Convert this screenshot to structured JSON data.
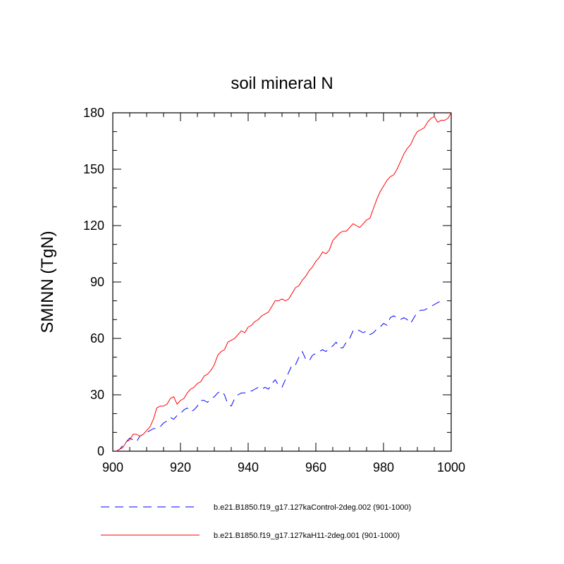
{
  "chart_data": {
    "type": "line",
    "title": "soil mineral N",
    "xlabel": "",
    "ylabel": "SMINN  (TgN)",
    "xlim": [
      900,
      1000
    ],
    "ylim": [
      0,
      180
    ],
    "xticks": [
      900,
      920,
      940,
      960,
      980,
      1000
    ],
    "yticks": [
      0,
      30,
      60,
      90,
      120,
      150,
      180
    ],
    "legend_position": "bottom",
    "series": [
      {
        "name": "b.e21.B1850.f19_g17.127kaControl-2deg.002 (901-1000)",
        "color": "#0000ff",
        "style": "dashed",
        "x": [
          901,
          902,
          903,
          904,
          905,
          906,
          907,
          908,
          909,
          910,
          911,
          912,
          913,
          914,
          915,
          916,
          917,
          918,
          919,
          920,
          921,
          922,
          923,
          924,
          925,
          926,
          927,
          928,
          929,
          930,
          931,
          932,
          933,
          934,
          935,
          936,
          937,
          938,
          939,
          940,
          941,
          942,
          943,
          944,
          945,
          946,
          947,
          948,
          949,
          950,
          951,
          952,
          953,
          954,
          955,
          956,
          957,
          958,
          959,
          960,
          961,
          962,
          963,
          964,
          965,
          966,
          967,
          968,
          969,
          970,
          971,
          972,
          973,
          974,
          975,
          976,
          977,
          978,
          979,
          980,
          981,
          982,
          983,
          984,
          985,
          986,
          987,
          988,
          989,
          990,
          991,
          992,
          993,
          994,
          995,
          996,
          997,
          998
        ],
        "values": [
          0,
          1,
          3,
          5,
          7,
          6,
          5,
          8,
          9,
          10,
          11,
          12,
          12,
          13,
          15,
          16,
          18,
          17,
          19,
          20,
          22,
          23,
          21,
          22,
          24,
          27,
          27,
          26,
          28,
          29,
          31,
          32,
          30,
          25,
          24,
          28,
          30,
          31,
          31,
          32,
          32,
          33,
          34,
          33,
          34,
          33,
          36,
          38,
          35,
          34,
          38,
          42,
          46,
          46,
          50,
          53,
          49,
          48,
          51,
          52,
          53,
          54,
          53,
          55,
          56,
          58,
          55,
          55,
          58,
          60,
          64,
          65,
          64,
          63,
          64,
          62,
          63,
          65,
          66,
          68,
          67,
          71,
          72,
          71,
          70,
          71,
          70,
          68,
          71,
          74,
          75,
          75,
          76,
          77,
          78,
          79,
          80,
          81
        ]
      },
      {
        "name": "b.e21.B1850.f19_g17.127kaH11-2deg.001 (901-1000)",
        "color": "#ff0000",
        "style": "solid",
        "x": [
          901,
          902,
          903,
          904,
          905,
          906,
          907,
          908,
          909,
          910,
          911,
          912,
          913,
          914,
          915,
          916,
          917,
          918,
          919,
          920,
          921,
          922,
          923,
          924,
          925,
          926,
          927,
          928,
          929,
          930,
          931,
          932,
          933,
          934,
          935,
          936,
          937,
          938,
          939,
          940,
          941,
          942,
          943,
          944,
          945,
          946,
          947,
          948,
          949,
          950,
          951,
          952,
          953,
          954,
          955,
          956,
          957,
          958,
          959,
          960,
          961,
          962,
          963,
          964,
          965,
          966,
          967,
          968,
          969,
          970,
          971,
          972,
          973,
          974,
          975,
          976,
          977,
          978,
          979,
          980,
          981,
          982,
          983,
          984,
          985,
          986,
          987,
          988,
          989,
          990,
          991,
          992,
          993,
          994,
          995,
          996,
          997,
          998,
          999,
          1000
        ],
        "values": [
          0,
          1,
          2,
          5,
          6,
          9,
          9,
          8,
          9,
          11,
          13,
          17,
          23,
          24,
          24,
          25,
          28,
          29,
          25,
          27,
          28,
          31,
          33,
          34,
          36,
          37,
          40,
          41,
          43,
          46,
          51,
          53,
          54,
          58,
          59,
          60,
          62,
          64,
          63,
          66,
          67,
          69,
          70,
          72,
          73,
          74,
          77,
          80,
          80,
          81,
          80,
          81,
          84,
          87,
          88,
          91,
          93,
          96,
          98,
          101,
          103,
          106,
          105,
          107,
          112,
          114,
          116,
          117,
          117,
          119,
          121,
          120,
          119,
          121,
          123,
          124,
          129,
          134,
          138,
          141,
          144,
          146,
          147,
          150,
          154,
          158,
          161,
          163,
          167,
          170,
          171,
          172,
          175,
          177,
          178,
          175,
          176,
          176,
          177,
          180
        ]
      }
    ]
  }
}
